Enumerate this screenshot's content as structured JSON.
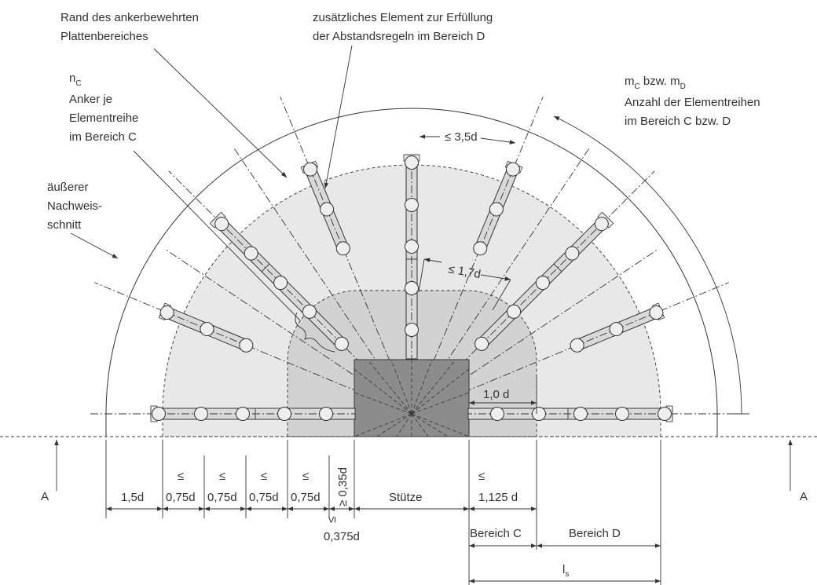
{
  "labels": {
    "rand": [
      "Rand des ankerbewehrten",
      "Plattenbereiches"
    ],
    "zusatz": [
      "zusätzliches Element zur Erfüllung",
      "der Abstandsregeln im Bereich D"
    ],
    "nc": {
      "symbol": "n",
      "sub": "C",
      "lines": [
        "Anker je",
        "Elementreihe",
        "im Bereich C"
      ]
    },
    "mc": {
      "m": "m",
      "c": "C",
      "bzw": " bzw. m",
      "d": "D",
      "lines": [
        "Anzahl der Elementreihen",
        "im Bereich C bzw. D"
      ]
    },
    "aussen": [
      "äußerer",
      "Nachweis-",
      "schnitt"
    ],
    "spacing_outer": "≤ 3,5d",
    "spacing_inner": "≤ 1,7d",
    "dist": "1,0 d",
    "section": "A"
  },
  "dimensions": {
    "outer": "1,5d",
    "le": [
      "≤",
      "≤",
      "≤",
      "≤",
      "≤",
      "≤"
    ],
    "rows": [
      "0,75d",
      "0,75d",
      "0,75d",
      "0,75d"
    ],
    "first_min": "≥ 0,35d",
    "first_max": "0,375d",
    "column": "Stütze",
    "c_first": "1,125 d",
    "region_c": "Bereich C",
    "region_d": "Bereich D",
    "ls": {
      "symbol": "l",
      "sub": "s"
    }
  }
}
